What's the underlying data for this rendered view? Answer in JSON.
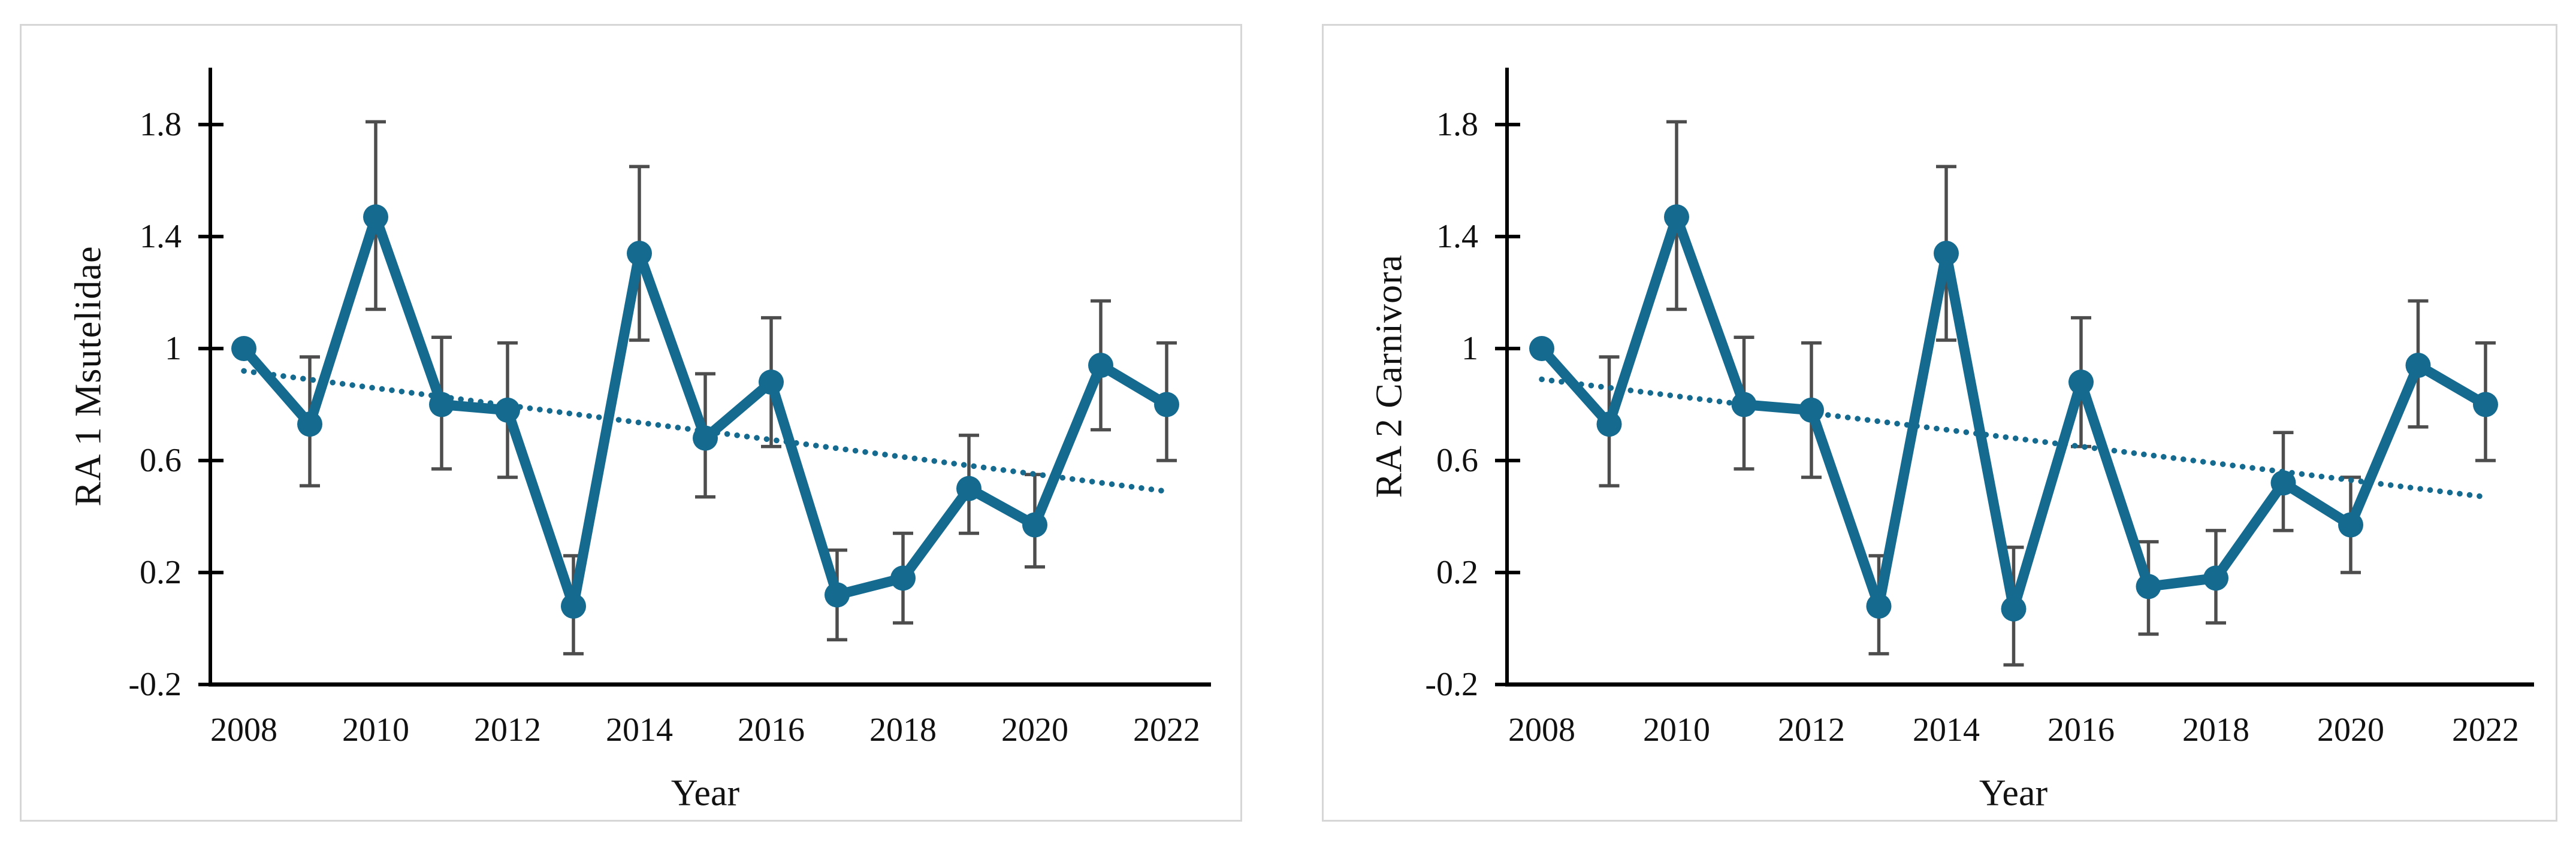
{
  "figure": {
    "background": "#ffffff",
    "panel_border_color": "#d6d6d6",
    "panel_count": 2
  },
  "colors": {
    "series": "#156a90",
    "trend": "#156a90",
    "error_bar": "#4d4d4d",
    "axis": "#000000",
    "text": "#111111"
  },
  "chart_data": [
    {
      "type": "line",
      "title": "",
      "ylabel": "RA 1 Msutelidae",
      "xlabel": "Year",
      "x": [
        2008,
        2009,
        2010,
        2011,
        2012,
        2013,
        2014,
        2015,
        2016,
        2017,
        2018,
        2019,
        2020,
        2021,
        2022
      ],
      "series": [
        {
          "name": "RA 1 Msutelidae",
          "values": [
            1.0,
            0.73,
            1.47,
            0.8,
            0.78,
            0.08,
            1.34,
            0.68,
            0.88,
            0.12,
            0.18,
            0.5,
            0.37,
            0.94,
            0.8
          ],
          "error_low": [
            1.0,
            0.51,
            1.14,
            0.57,
            0.54,
            -0.09,
            1.03,
            0.47,
            0.65,
            -0.04,
            0.02,
            0.34,
            0.22,
            0.71,
            0.6
          ],
          "error_high": [
            1.0,
            0.97,
            1.81,
            1.04,
            1.02,
            0.26,
            1.65,
            0.91,
            1.11,
            0.28,
            0.34,
            0.69,
            0.55,
            1.17,
            1.02
          ]
        }
      ],
      "trend": {
        "style": "dotted",
        "x_start": 2008,
        "x_end": 2022,
        "start": 0.92,
        "end": 0.49
      },
      "ylim": [
        -0.2,
        1.8
      ],
      "y_ticks": [
        1.8,
        1.4,
        1,
        0.6,
        0.2,
        -0.2
      ],
      "y_tick_labels": [
        "1.8",
        "1.4",
        "1",
        "0.6",
        "0.2",
        "-0.2"
      ],
      "x_tick_years": [
        2008,
        2010,
        2012,
        2014,
        2016,
        2018,
        2020,
        2022
      ],
      "x_tick_labels": [
        "2008",
        "2010",
        "2012",
        "2014",
        "2016",
        "2018",
        "2020",
        "2022"
      ],
      "grid": false,
      "legend": "none",
      "marker": "circle",
      "error_bars": true
    },
    {
      "type": "line",
      "title": "",
      "ylabel": "RA 2 Carnivora",
      "xlabel": "Year",
      "x": [
        2008,
        2009,
        2010,
        2011,
        2012,
        2013,
        2014,
        2015,
        2016,
        2017,
        2018,
        2019,
        2020,
        2021,
        2022
      ],
      "series": [
        {
          "name": "RA 2 Carnivora",
          "values": [
            1.0,
            0.73,
            1.47,
            0.8,
            0.78,
            0.08,
            1.34,
            0.07,
            0.88,
            0.15,
            0.18,
            0.52,
            0.37,
            0.94,
            0.8
          ],
          "error_low": [
            1.0,
            0.51,
            1.14,
            0.57,
            0.54,
            -0.09,
            1.03,
            -0.13,
            0.65,
            -0.02,
            0.02,
            0.35,
            0.2,
            0.72,
            0.6
          ],
          "error_high": [
            1.0,
            0.97,
            1.81,
            1.04,
            1.02,
            0.26,
            1.65,
            0.29,
            1.11,
            0.31,
            0.35,
            0.7,
            0.54,
            1.17,
            1.02
          ]
        }
      ],
      "trend": {
        "style": "dotted",
        "x_start": 2008,
        "x_end": 2022,
        "start": 0.89,
        "end": 0.47
      },
      "ylim": [
        -0.2,
        1.8
      ],
      "y_ticks": [
        1.8,
        1.4,
        1,
        0.6,
        0.2,
        -0.2
      ],
      "y_tick_labels": [
        "1.8",
        "1.4",
        "1",
        "0.6",
        "0.2",
        "-0.2"
      ],
      "x_tick_years": [
        2008,
        2010,
        2012,
        2014,
        2016,
        2018,
        2020,
        2022
      ],
      "x_tick_labels": [
        "2008",
        "2010",
        "2012",
        "2014",
        "2016",
        "2018",
        "2020",
        "2022"
      ],
      "grid": false,
      "legend": "none",
      "marker": "circle",
      "error_bars": true
    }
  ]
}
